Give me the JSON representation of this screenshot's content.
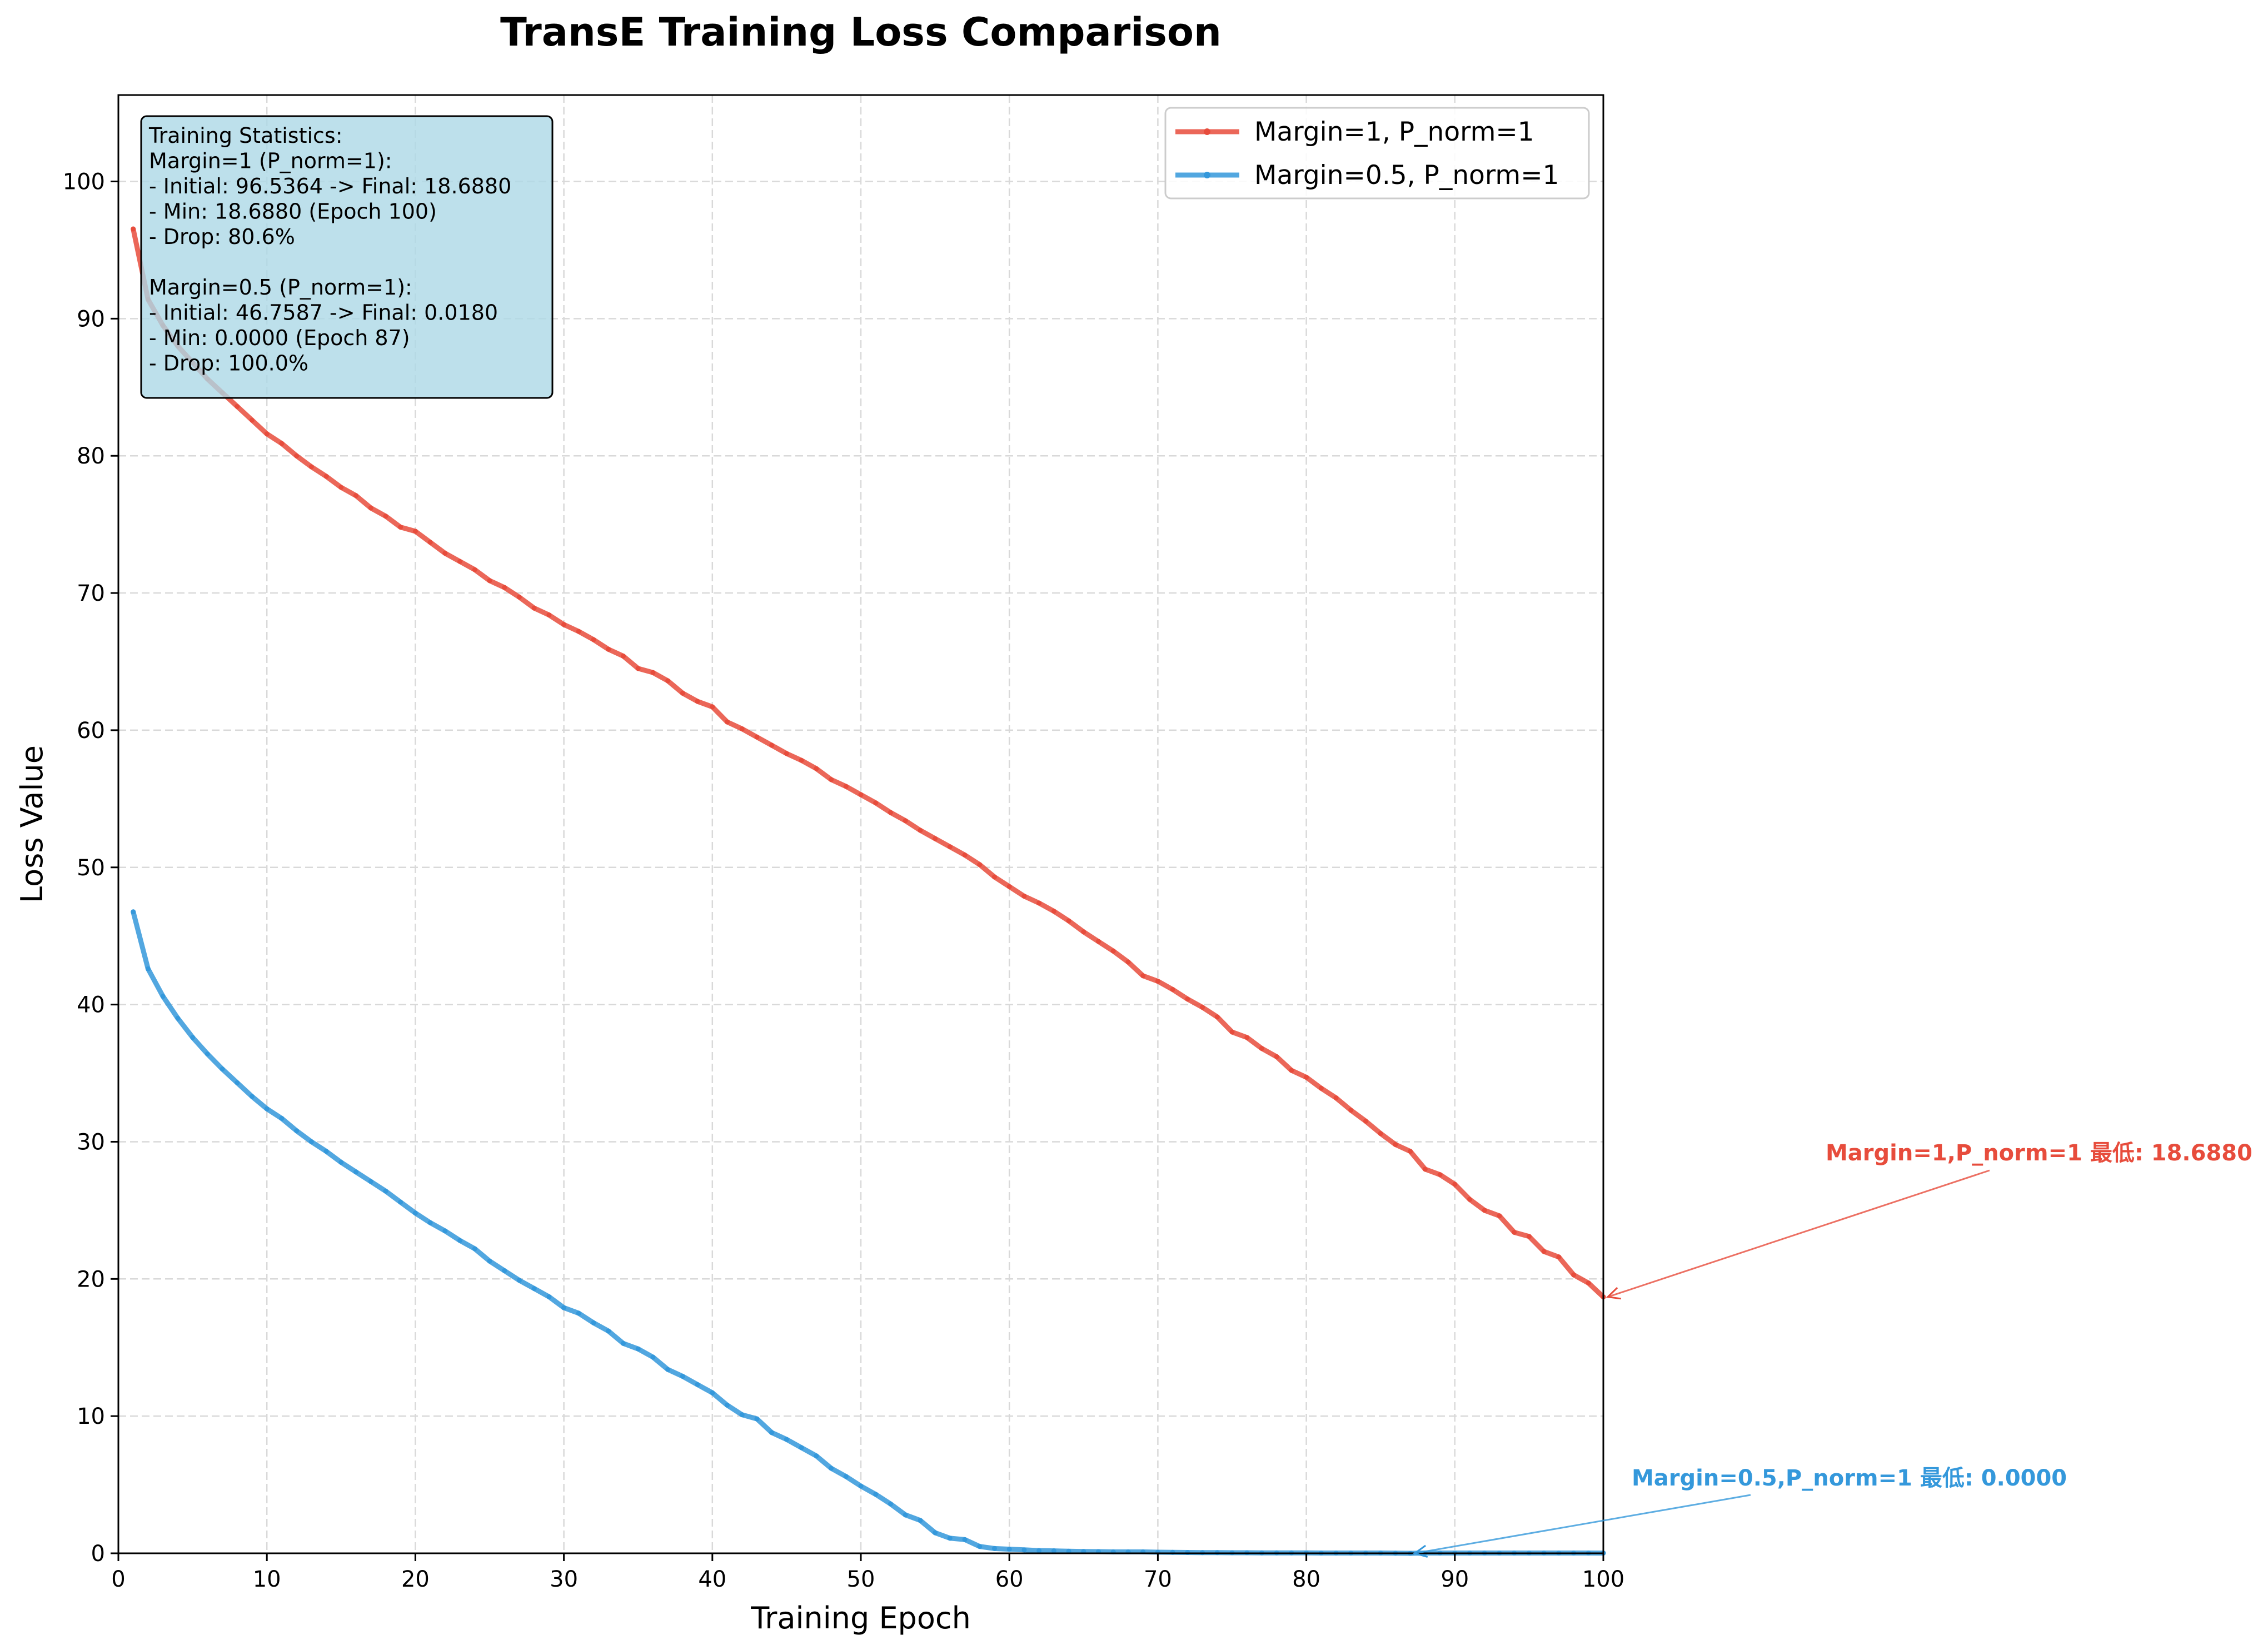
{
  "chart_data": {
    "type": "line",
    "title": "TransE Training Loss Comparison",
    "xlabel": "Training Epoch",
    "ylabel": "Loss Value",
    "xlim": [
      0,
      100
    ],
    "ylim": [
      0,
      106.3
    ],
    "xticks": [
      0,
      10,
      20,
      30,
      40,
      50,
      60,
      70,
      80,
      90,
      100
    ],
    "yticks": [
      0,
      10,
      20,
      30,
      40,
      50,
      60,
      70,
      80,
      90,
      100
    ],
    "grid": true,
    "legend_position": "top-right",
    "series": [
      {
        "name": "Margin=1, P_norm=1",
        "color": "#e74c3c",
        "x": [
          1,
          2,
          3,
          4,
          5,
          6,
          7,
          8,
          9,
          10,
          11,
          12,
          13,
          14,
          15,
          16,
          17,
          18,
          19,
          20,
          21,
          22,
          23,
          24,
          25,
          26,
          27,
          28,
          29,
          30,
          31,
          32,
          33,
          34,
          35,
          36,
          37,
          38,
          39,
          40,
          41,
          42,
          43,
          44,
          45,
          46,
          47,
          48,
          49,
          50,
          51,
          52,
          53,
          54,
          55,
          56,
          57,
          58,
          59,
          60,
          61,
          62,
          63,
          64,
          65,
          66,
          67,
          68,
          69,
          70,
          71,
          72,
          73,
          74,
          75,
          76,
          77,
          78,
          79,
          80,
          81,
          82,
          83,
          84,
          85,
          86,
          87,
          88,
          89,
          90,
          91,
          92,
          93,
          94,
          95,
          96,
          97,
          98,
          99,
          100
        ],
        "values": [
          96.5364,
          91.4,
          89.5,
          88.0,
          86.8,
          85.6,
          84.6,
          83.6,
          82.6,
          81.6,
          80.9,
          80.0,
          79.2,
          78.5,
          77.7,
          77.1,
          76.2,
          75.6,
          74.8,
          74.5,
          73.7,
          72.9,
          72.3,
          71.7,
          70.9,
          70.4,
          69.7,
          68.9,
          68.4,
          67.7,
          67.2,
          66.6,
          65.9,
          65.4,
          64.5,
          64.2,
          63.6,
          62.7,
          62.1,
          61.7,
          60.6,
          60.1,
          59.5,
          58.9,
          58.3,
          57.8,
          57.2,
          56.4,
          55.9,
          55.3,
          54.7,
          54.0,
          53.4,
          52.7,
          52.1,
          51.5,
          50.9,
          50.2,
          49.3,
          48.6,
          47.9,
          47.4,
          46.8,
          46.1,
          45.3,
          44.6,
          43.9,
          43.1,
          42.1,
          41.7,
          41.1,
          40.4,
          39.8,
          39.1,
          38.0,
          37.6,
          36.8,
          36.2,
          35.2,
          34.7,
          33.9,
          33.2,
          32.3,
          31.5,
          30.6,
          29.8,
          29.3,
          28.0,
          27.6,
          26.9,
          25.8,
          25.0,
          24.6,
          23.4,
          23.1,
          22.0,
          21.6,
          20.3,
          19.7,
          18.688
        ]
      },
      {
        "name": "Margin=0.5, P_norm=1",
        "color": "#3498db",
        "x": [
          1,
          2,
          3,
          4,
          5,
          6,
          7,
          8,
          9,
          10,
          11,
          12,
          13,
          14,
          15,
          16,
          17,
          18,
          19,
          20,
          21,
          22,
          23,
          24,
          25,
          26,
          27,
          28,
          29,
          30,
          31,
          32,
          33,
          34,
          35,
          36,
          37,
          38,
          39,
          40,
          41,
          42,
          43,
          44,
          45,
          46,
          47,
          48,
          49,
          50,
          51,
          52,
          53,
          54,
          55,
          56,
          57,
          58,
          59,
          60,
          61,
          62,
          63,
          64,
          65,
          66,
          67,
          68,
          69,
          70,
          71,
          72,
          73,
          74,
          75,
          76,
          77,
          78,
          79,
          80,
          81,
          82,
          83,
          84,
          85,
          86,
          87,
          88,
          89,
          90,
          91,
          92,
          93,
          94,
          95,
          96,
          97,
          98,
          99,
          100
        ],
        "values": [
          46.7587,
          42.6,
          40.6,
          39.0,
          37.6,
          36.4,
          35.3,
          34.3,
          33.3,
          32.4,
          31.7,
          30.8,
          30.0,
          29.3,
          28.5,
          27.8,
          27.1,
          26.4,
          25.6,
          24.8,
          24.1,
          23.5,
          22.8,
          22.2,
          21.3,
          20.6,
          19.9,
          19.3,
          18.7,
          17.9,
          17.5,
          16.8,
          16.2,
          15.3,
          14.9,
          14.3,
          13.4,
          12.9,
          12.3,
          11.7,
          10.8,
          10.1,
          9.8,
          8.8,
          8.3,
          7.7,
          7.1,
          6.2,
          5.6,
          4.9,
          4.3,
          3.6,
          2.8,
          2.4,
          1.5,
          1.1,
          1.0,
          0.5,
          0.35,
          0.3,
          0.25,
          0.2,
          0.18,
          0.15,
          0.13,
          0.12,
          0.1,
          0.1,
          0.1,
          0.08,
          0.07,
          0.06,
          0.05,
          0.05,
          0.04,
          0.04,
          0.03,
          0.03,
          0.03,
          0.03,
          0.02,
          0.02,
          0.02,
          0.02,
          0.02,
          0.01,
          0.0,
          0.02,
          0.02,
          0.02,
          0.02,
          0.02,
          0.02,
          0.02,
          0.02,
          0.02,
          0.02,
          0.02,
          0.02,
          0.018
        ]
      }
    ],
    "stats_box": {
      "lines": [
        "Training Statistics:",
        "Margin=1 (P_norm=1):",
        "- Initial: 96.5364 -> Final: 18.6880",
        "- Min: 18.6880 (Epoch 100)",
        "- Drop: 80.6%",
        "",
        "Margin=0.5 (P_norm=1):",
        "- Initial: 46.7587 -> Final: 0.0180",
        "- Min: 0.0000 (Epoch 87)",
        "- Drop: 100.0%"
      ],
      "background": "#add8e6"
    },
    "annotations": [
      {
        "text": "Margin=1,P_norm=1 最低: 18.6880",
        "color": "#e74c3c",
        "point": [
          100,
          18.688
        ]
      },
      {
        "text": "Margin=0.5,P_norm=1 最低: 0.0000",
        "color": "#3498db",
        "point": [
          87,
          0.0
        ]
      }
    ]
  }
}
